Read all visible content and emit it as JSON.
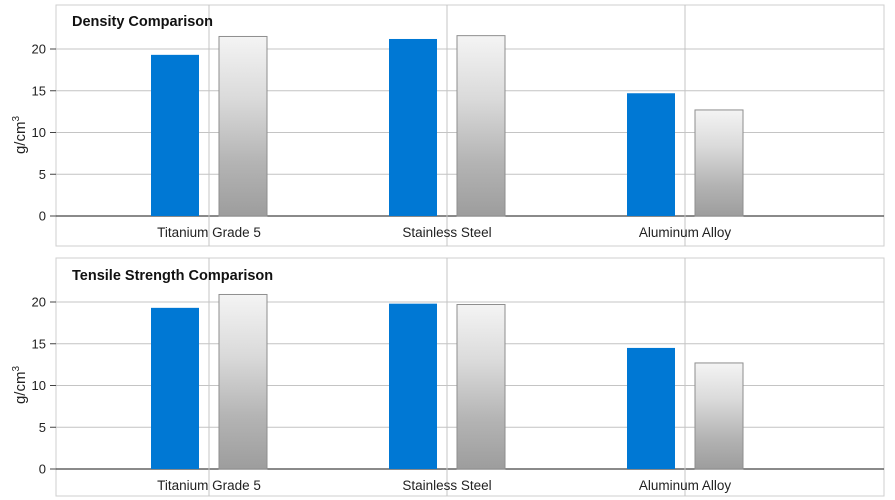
{
  "chart_data": [
    {
      "type": "bar",
      "title": "Density Comparison",
      "ylabel": "g/cm",
      "ylabel_sup": "3",
      "categories": [
        "Titanium Grade 5",
        "Stainless Steel",
        "Aluminum Alloy"
      ],
      "series": [
        {
          "color": "#0078d4",
          "values": [
            19.3,
            21.2,
            14.7
          ]
        },
        {
          "color": "#b0b0b0",
          "values": [
            21.5,
            21.6,
            12.7
          ]
        }
      ],
      "ylim": [
        0,
        25
      ],
      "yticks": [
        0,
        5,
        10,
        15,
        20
      ],
      "grid": true
    },
    {
      "type": "bar",
      "title": "Tensile Strength Comparison",
      "ylabel": "g/cm",
      "ylabel_sup": "3",
      "categories": [
        "Titanium Grade 5",
        "Stainless Steel",
        "Aluminum Alloy"
      ],
      "series": [
        {
          "color": "#0078d4",
          "values": [
            19.3,
            19.8,
            14.5
          ]
        },
        {
          "color": "#b0b0b0",
          "values": [
            20.9,
            19.7,
            12.7
          ]
        }
      ],
      "ylim": [
        0,
        25
      ],
      "yticks": [
        0,
        5,
        10,
        15,
        20
      ],
      "grid": true
    }
  ]
}
